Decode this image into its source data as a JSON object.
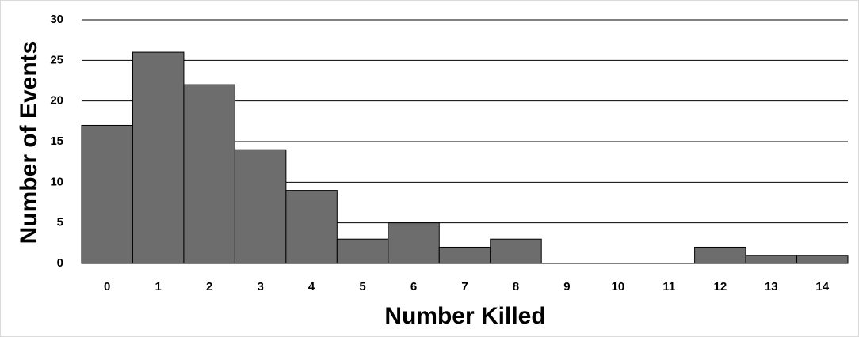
{
  "chart_data": {
    "type": "bar",
    "xlabel": "Number Killed",
    "ylabel": "Number of Events",
    "categories": [
      "0",
      "1",
      "2",
      "3",
      "4",
      "5",
      "6",
      "7",
      "8",
      "9",
      "10",
      "11",
      "12",
      "13",
      "14"
    ],
    "values": [
      17,
      26,
      22,
      14,
      9,
      3,
      5,
      2,
      3,
      0,
      0,
      0,
      2,
      1,
      1
    ],
    "color": "#6d6d6d",
    "ylim": [
      0,
      30
    ],
    "yticks": [
      0,
      5,
      10,
      15,
      20,
      25,
      30
    ],
    "grid": true
  }
}
